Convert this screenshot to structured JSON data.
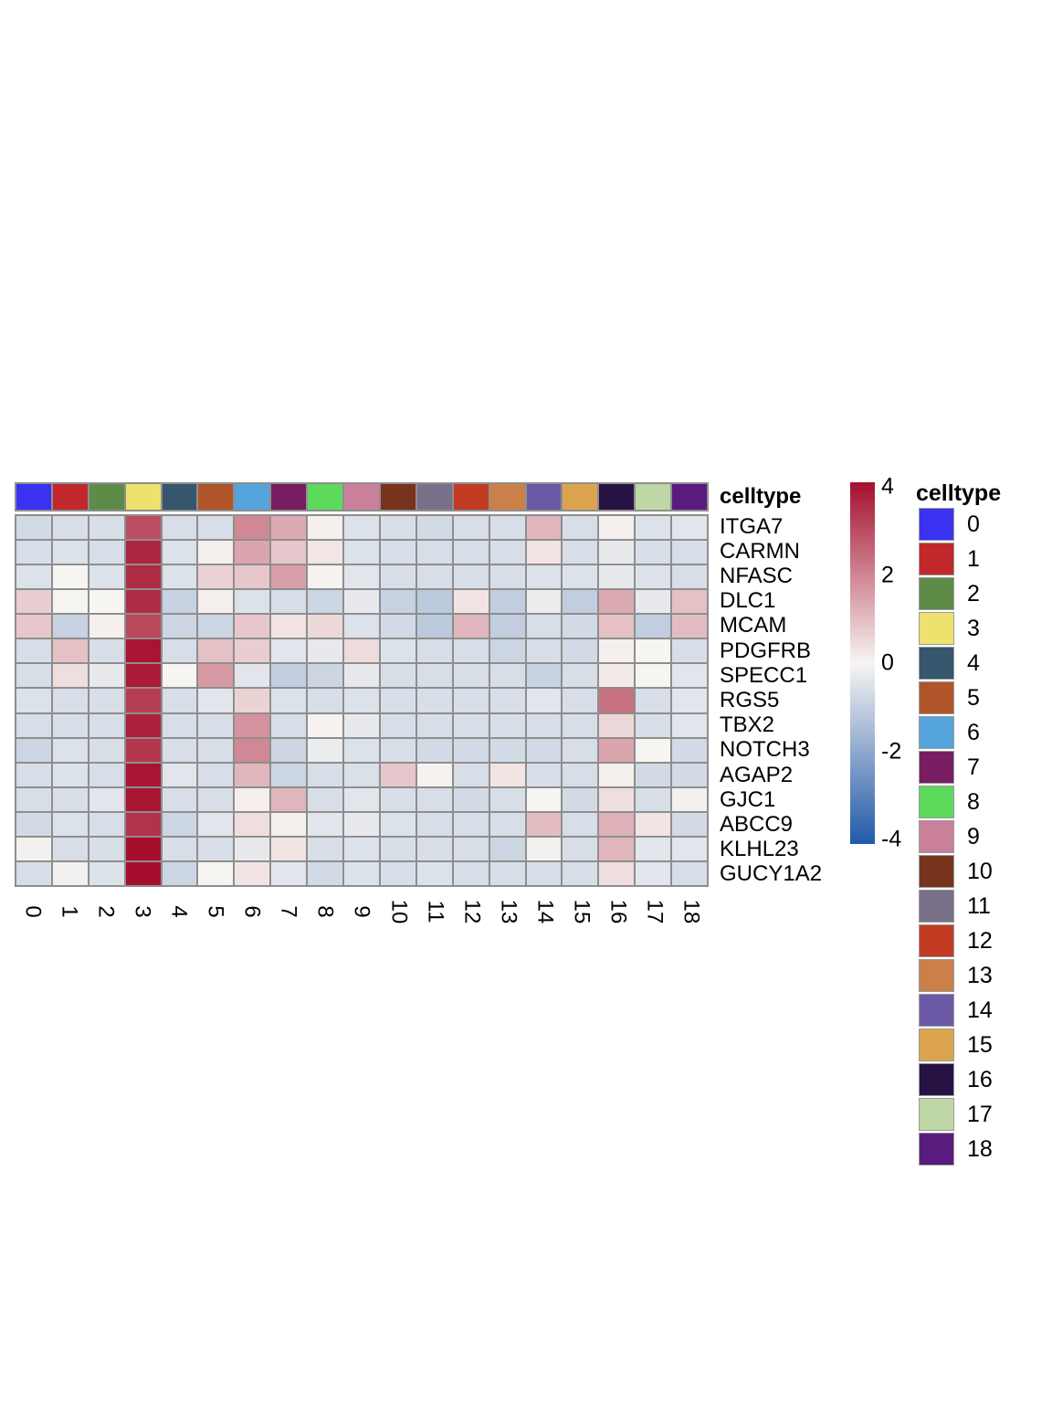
{
  "figure": {
    "annotation_title": "celltype",
    "legend_title": "celltype"
  },
  "chart_data": {
    "type": "heatmap",
    "title": "",
    "xlabel": "",
    "ylabel": "",
    "rows_genes": [
      "ITGA7",
      "CARMN",
      "NFASC",
      "DLC1",
      "MCAM",
      "PDGFRB",
      "SPECC1",
      "RGS5",
      "TBX2",
      "NOTCH3",
      "AGAP2",
      "GJC1",
      "ABCC9",
      "KLHL23",
      "GUCY1A2"
    ],
    "columns_celltypes": [
      "0",
      "1",
      "2",
      "3",
      "4",
      "5",
      "6",
      "7",
      "8",
      "9",
      "10",
      "11",
      "12",
      "13",
      "14",
      "15",
      "16",
      "17",
      "18"
    ],
    "values": [
      [
        -0.7,
        -0.6,
        -0.6,
        2.9,
        -0.6,
        -0.6,
        1.9,
        1.3,
        0.1,
        -0.5,
        -0.6,
        -0.7,
        -0.6,
        -0.6,
        1.1,
        -0.6,
        0.1,
        -0.5,
        -0.4
      ],
      [
        -0.6,
        -0.5,
        -0.6,
        3.6,
        -0.5,
        0.1,
        1.4,
        0.8,
        0.25,
        -0.5,
        -0.6,
        -0.6,
        -0.6,
        -0.6,
        0.3,
        -0.6,
        -0.3,
        -0.6,
        -0.6
      ],
      [
        -0.5,
        0.0,
        -0.5,
        3.5,
        -0.5,
        0.6,
        0.8,
        1.5,
        0.05,
        -0.4,
        -0.6,
        -0.6,
        -0.6,
        -0.6,
        -0.5,
        -0.5,
        -0.3,
        -0.5,
        -0.6
      ],
      [
        0.7,
        0.0,
        0.0,
        3.5,
        -0.9,
        0.1,
        -0.5,
        -0.6,
        -0.8,
        -0.3,
        -0.9,
        -1.1,
        0.3,
        -1.0,
        -0.2,
        -1.0,
        1.3,
        -0.3,
        0.9
      ],
      [
        0.8,
        -0.9,
        0.1,
        3.0,
        -0.8,
        -0.8,
        0.8,
        0.3,
        0.5,
        -0.5,
        -0.7,
        -1.1,
        1.1,
        -1.0,
        -0.6,
        -0.7,
        0.9,
        -1.0,
        1.0
      ],
      [
        -0.6,
        0.9,
        -0.6,
        3.9,
        -0.6,
        0.9,
        0.7,
        -0.4,
        -0.3,
        0.45,
        -0.5,
        -0.6,
        -0.6,
        -0.8,
        -0.6,
        -0.7,
        0.1,
        0.0,
        -0.6
      ],
      [
        -0.6,
        0.4,
        -0.3,
        3.8,
        0.0,
        1.6,
        -0.4,
        -1.0,
        -0.8,
        -0.3,
        -0.6,
        -0.6,
        -0.6,
        -0.6,
        -0.9,
        -0.6,
        0.2,
        0.0,
        -0.4
      ],
      [
        -0.5,
        -0.6,
        -0.6,
        3.2,
        -0.6,
        -0.4,
        0.6,
        -0.5,
        -0.6,
        -0.5,
        -0.6,
        -0.6,
        -0.6,
        -0.6,
        -0.4,
        -0.6,
        2.3,
        -0.6,
        -0.4
      ],
      [
        -0.6,
        -0.6,
        -0.6,
        3.7,
        -0.6,
        -0.6,
        1.7,
        -0.6,
        0.05,
        -0.3,
        -0.6,
        -0.6,
        -0.6,
        -0.6,
        -0.6,
        -0.6,
        0.5,
        -0.6,
        -0.4
      ],
      [
        -0.8,
        -0.5,
        -0.6,
        3.3,
        -0.6,
        -0.6,
        1.9,
        -0.8,
        -0.2,
        -0.5,
        -0.6,
        -0.7,
        -0.7,
        -0.7,
        -0.7,
        -0.6,
        1.4,
        0.0,
        -0.7
      ],
      [
        -0.6,
        -0.5,
        -0.6,
        3.9,
        -0.4,
        -0.6,
        1.1,
        -0.8,
        -0.6,
        -0.55,
        0.8,
        0.05,
        -0.6,
        0.3,
        -0.6,
        -0.6,
        0.1,
        -0.7,
        -0.7
      ],
      [
        -0.6,
        -0.6,
        -0.4,
        3.9,
        -0.6,
        -0.6,
        0.1,
        1.1,
        -0.6,
        -0.4,
        -0.6,
        -0.6,
        -0.7,
        -0.6,
        0.0,
        -0.7,
        0.4,
        -0.6,
        -0.1
      ],
      [
        -0.7,
        -0.5,
        -0.6,
        3.4,
        -0.8,
        -0.4,
        0.4,
        0.1,
        -0.4,
        -0.3,
        -0.5,
        -0.6,
        -0.6,
        -0.6,
        1.0,
        -0.6,
        1.2,
        0.3,
        -0.7
      ],
      [
        -0.1,
        -0.6,
        -0.6,
        4.0,
        -0.6,
        -0.6,
        -0.3,
        0.3,
        -0.6,
        -0.5,
        -0.6,
        -0.6,
        -0.6,
        -0.8,
        -0.1,
        -0.6,
        1.1,
        -0.4,
        -0.4
      ],
      [
        -0.6,
        -0.1,
        -0.5,
        4.0,
        -0.8,
        0.0,
        0.3,
        -0.4,
        -0.7,
        -0.5,
        -0.6,
        -0.5,
        -0.6,
        -0.6,
        -0.6,
        -0.6,
        0.4,
        -0.4,
        -0.6
      ]
    ],
    "zlim": [
      -4,
      4
    ],
    "colorbar_ticks": [
      "4",
      "2",
      "0",
      "-2",
      "-4"
    ],
    "colorbar_tick_values": [
      4,
      2,
      0,
      -2,
      -4
    ],
    "colormap": {
      "high": "#A50F2D",
      "mid": "#F7F5F2",
      "low": "#2159A9"
    },
    "grid_line_color": "#8E8E8E",
    "column_annotation": {
      "title": "celltype",
      "colors": [
        "#3A32F0",
        "#C1272B",
        "#5E8C48",
        "#EDE26D",
        "#35566C",
        "#B05529",
        "#56A4DC",
        "#781D62",
        "#5DD95C",
        "#CA7F9B",
        "#77331C",
        "#79708A",
        "#C13C23",
        "#CB8049",
        "#6C59A6",
        "#DDA44F",
        "#271244",
        "#BFD7A6",
        "#591B7E"
      ]
    },
    "legend": {
      "title": "celltype",
      "labels": [
        "0",
        "1",
        "2",
        "3",
        "4",
        "5",
        "6",
        "7",
        "8",
        "9",
        "10",
        "11",
        "12",
        "13",
        "14",
        "15",
        "16",
        "17",
        "18"
      ],
      "colors": [
        "#3A32F0",
        "#C1272B",
        "#5E8C48",
        "#EDE26D",
        "#35566C",
        "#B05529",
        "#56A4DC",
        "#781D62",
        "#5DD95C",
        "#CA7F9B",
        "#77331C",
        "#79708A",
        "#C13C23",
        "#CB8049",
        "#6C59A6",
        "#DDA44F",
        "#271244",
        "#BFD7A6",
        "#591B7E"
      ],
      "position": "right"
    }
  }
}
